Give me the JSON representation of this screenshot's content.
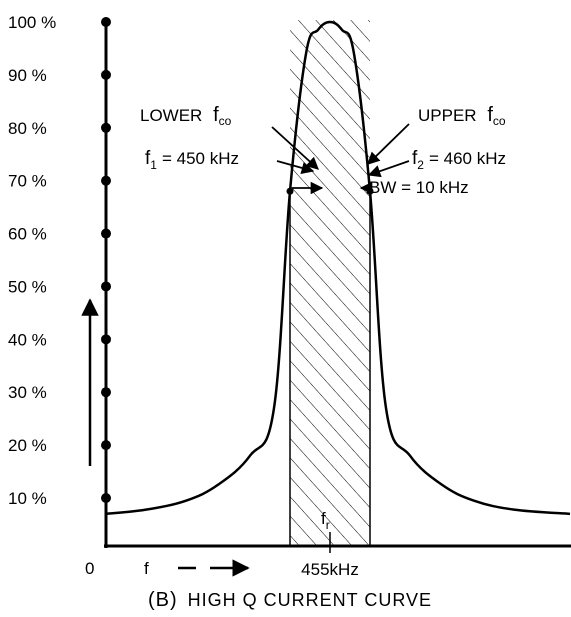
{
  "chart_data": {
    "type": "line",
    "title": "",
    "caption": {
      "prefix": "(B)",
      "text": "HIGH Q CURRENT CURVE"
    },
    "y_axis": {
      "ticks": [
        100,
        90,
        80,
        70,
        60,
        50,
        40,
        30,
        20,
        10
      ],
      "tick_labels": [
        "100 %",
        "90 %",
        "80 %",
        "70 %",
        "60 %",
        "50 %",
        "40 %",
        "30 %",
        "20 %",
        "10 %"
      ],
      "ylim": [
        0,
        100
      ]
    },
    "x_axis": {
      "origin_label": "0",
      "label": "f",
      "center_label": "455kHz",
      "xlim": [
        427,
        485
      ]
    },
    "series": [
      {
        "x": [
          427,
          432,
          437,
          441,
          445,
          448,
          450,
          452,
          453.5,
          455,
          456.5,
          458,
          460,
          462,
          465,
          469,
          473,
          478,
          485
        ],
        "y": [
          7,
          7.8,
          9.5,
          12.5,
          18,
          27,
          68,
          94,
          98.5,
          100,
          98.5,
          94,
          68,
          27,
          18,
          12.5,
          9.5,
          7.8,
          7
        ]
      }
    ],
    "band": {
      "from": 450,
      "to": 460,
      "hatched": true
    },
    "resonance_marker": {
      "x": 455,
      "label": "f",
      "sub": "r"
    },
    "annotations": {
      "lower": {
        "label": "LOWER",
        "f": "f",
        "f_sub": "co"
      },
      "upper": {
        "label": "UPPER",
        "f": "f",
        "f_sub": "co"
      },
      "f1": {
        "f": "f",
        "sub": "1",
        "value": "= 450 kHz"
      },
      "f2": {
        "f": "f",
        "sub": "2",
        "value": "= 460 kHz"
      },
      "bw": {
        "text": "BW = 10 kHz"
      }
    },
    "grid": false
  }
}
